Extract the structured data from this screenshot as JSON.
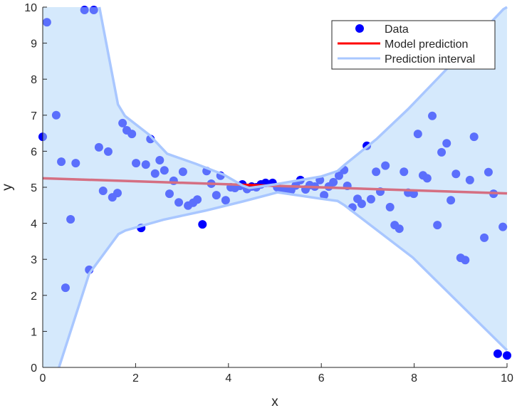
{
  "chart_data": {
    "type": "scatter",
    "xlabel": "x",
    "ylabel": "y",
    "xlim": [
      0,
      10
    ],
    "ylim": [
      0,
      10
    ],
    "xticks": [
      0,
      2,
      4,
      6,
      8,
      10
    ],
    "yticks": [
      0,
      1,
      2,
      3,
      4,
      5,
      6,
      7,
      8,
      9,
      10
    ],
    "grid": false,
    "legend_position": "top-right",
    "colors": {
      "data": "#0000ff",
      "model": "#ff0000",
      "interval": "#a9c7ff",
      "band_fill": "#afd5fa"
    },
    "series": [
      {
        "name": "Data",
        "type": "scatter",
        "points": [
          [
            0,
            6.4
          ],
          [
            0.09,
            9.58
          ],
          [
            0.29,
            7.0
          ],
          [
            0.4,
            5.71
          ],
          [
            0.49,
            2.21
          ],
          [
            0.6,
            4.11
          ],
          [
            0.71,
            5.67
          ],
          [
            0.9,
            9.92
          ],
          [
            1.1,
            9.92
          ],
          [
            1.0,
            2.71
          ],
          [
            1.21,
            6.11
          ],
          [
            1.3,
            4.9
          ],
          [
            1.41,
            5.99
          ],
          [
            1.5,
            4.72
          ],
          [
            1.61,
            4.84
          ],
          [
            1.72,
            6.78
          ],
          [
            1.81,
            6.58
          ],
          [
            1.92,
            6.48
          ],
          [
            2.01,
            5.67
          ],
          [
            2.12,
            3.87
          ],
          [
            2.22,
            5.63
          ],
          [
            2.32,
            6.34
          ],
          [
            2.42,
            5.38
          ],
          [
            2.52,
            5.75
          ],
          [
            2.62,
            5.47
          ],
          [
            2.73,
            4.82
          ],
          [
            2.82,
            5.18
          ],
          [
            2.93,
            4.58
          ],
          [
            3.02,
            5.43
          ],
          [
            3.13,
            4.49
          ],
          [
            3.24,
            4.57
          ],
          [
            3.33,
            4.66
          ],
          [
            3.44,
            3.97
          ],
          [
            3.53,
            5.45
          ],
          [
            3.63,
            5.1
          ],
          [
            3.74,
            4.78
          ],
          [
            3.83,
            5.32
          ],
          [
            3.94,
            4.64
          ],
          [
            4.05,
            5.0
          ],
          [
            4.14,
            4.98
          ],
          [
            4.25,
            5.04
          ],
          [
            4.3,
            5.08
          ],
          [
            4.4,
            4.95
          ],
          [
            4.5,
            5.02
          ],
          [
            4.6,
            5.0
          ],
          [
            4.7,
            5.08
          ],
          [
            4.8,
            5.12
          ],
          [
            4.95,
            5.12
          ],
          [
            5.05,
            5.0
          ],
          [
            5.15,
            4.95
          ],
          [
            5.24,
            4.92
          ],
          [
            5.35,
            4.92
          ],
          [
            5.45,
            5.05
          ],
          [
            5.55,
            5.2
          ],
          [
            5.66,
            4.94
          ],
          [
            5.75,
            5.06
          ],
          [
            5.86,
            5.02
          ],
          [
            5.97,
            5.2
          ],
          [
            6.06,
            4.78
          ],
          [
            6.16,
            5.02
          ],
          [
            6.26,
            5.14
          ],
          [
            6.38,
            5.32
          ],
          [
            6.49,
            5.48
          ],
          [
            6.56,
            5.04
          ],
          [
            6.67,
            4.44
          ],
          [
            6.78,
            4.68
          ],
          [
            6.87,
            4.54
          ],
          [
            6.98,
            6.15
          ],
          [
            7.07,
            4.67
          ],
          [
            7.18,
            5.43
          ],
          [
            7.27,
            4.88
          ],
          [
            7.38,
            5.6
          ],
          [
            7.48,
            4.45
          ],
          [
            7.58,
            3.95
          ],
          [
            7.68,
            3.85
          ],
          [
            7.78,
            5.43
          ],
          [
            7.87,
            4.85
          ],
          [
            7.99,
            4.82
          ],
          [
            8.08,
            6.48
          ],
          [
            8.19,
            5.33
          ],
          [
            8.28,
            5.25
          ],
          [
            8.39,
            6.98
          ],
          [
            8.5,
            3.95
          ],
          [
            8.59,
            5.97
          ],
          [
            8.7,
            6.22
          ],
          [
            8.79,
            4.64
          ],
          [
            8.9,
            5.37
          ],
          [
            9.0,
            3.04
          ],
          [
            9.1,
            2.98
          ],
          [
            9.2,
            5.2
          ],
          [
            9.29,
            6.4
          ],
          [
            9.51,
            3.6
          ],
          [
            9.6,
            5.42
          ],
          [
            9.71,
            4.82
          ],
          [
            9.8,
            0.38
          ],
          [
            9.91,
            3.9
          ],
          [
            10.0,
            0.33
          ]
        ]
      },
      {
        "name": "Model prediction",
        "type": "line",
        "points": [
          [
            0,
            5.25
          ],
          [
            10,
            4.83
          ]
        ]
      },
      {
        "name": "Prediction interval",
        "type": "band",
        "upper": [
          [
            0,
            10
          ],
          [
            1.22,
            10
          ],
          [
            1.62,
            7.3
          ],
          [
            1.77,
            6.98
          ],
          [
            2.3,
            6.45
          ],
          [
            2.68,
            5.93
          ],
          [
            3.3,
            5.65
          ],
          [
            3.9,
            5.35
          ],
          [
            4.3,
            5.05
          ],
          [
            4.45,
            4.98
          ],
          [
            5.0,
            5.08
          ],
          [
            6.0,
            5.3
          ],
          [
            6.35,
            5.45
          ],
          [
            6.5,
            5.62
          ],
          [
            7.2,
            6.35
          ],
          [
            7.87,
            7.17
          ],
          [
            8.7,
            8.28
          ],
          [
            9.92,
            9.94
          ],
          [
            10,
            10
          ]
        ],
        "lower": [
          [
            0.35,
            0
          ],
          [
            1.0,
            2.6
          ],
          [
            1.63,
            3.7
          ],
          [
            1.78,
            3.8
          ],
          [
            2.6,
            4.1
          ],
          [
            3.5,
            4.35
          ],
          [
            4.29,
            4.6
          ],
          [
            5.06,
            4.86
          ],
          [
            6.0,
            4.68
          ],
          [
            6.35,
            4.62
          ],
          [
            6.5,
            4.5
          ],
          [
            7.97,
            3.05
          ],
          [
            9.97,
            0.51
          ],
          [
            10,
            0.48
          ]
        ]
      }
    ]
  }
}
